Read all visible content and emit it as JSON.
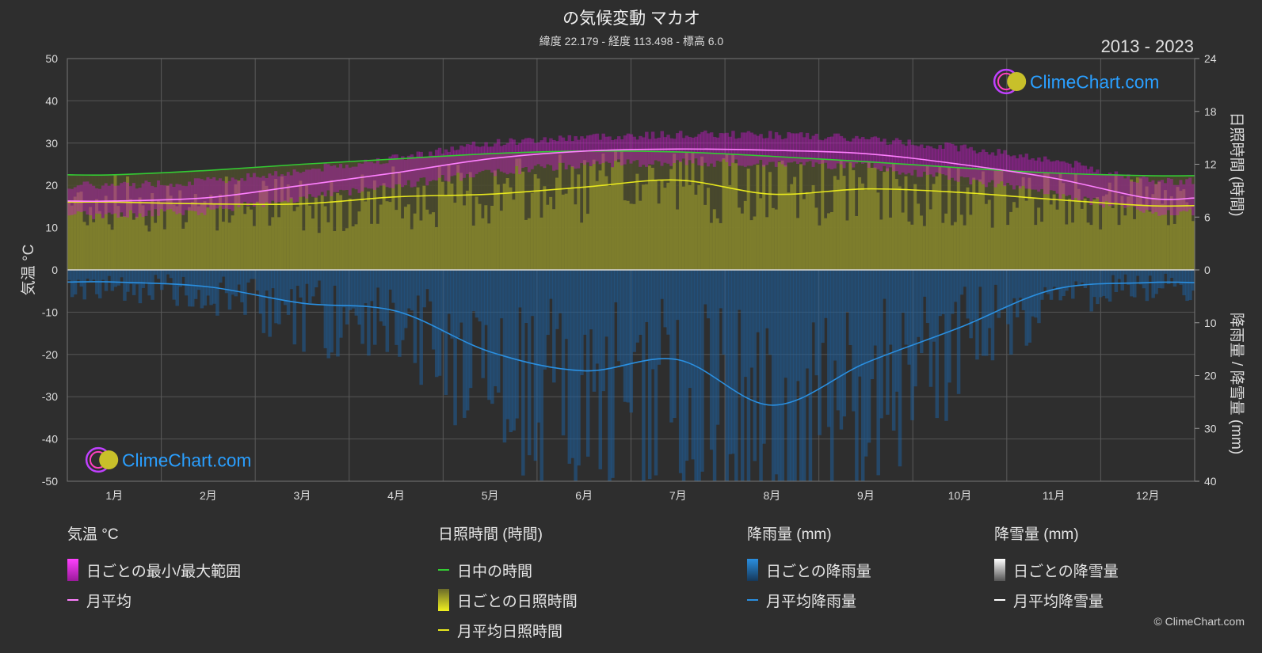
{
  "header": {
    "title": "の気候変動 マカオ",
    "subtitle": "緯度 22.179 - 経度 113.498 - 標高 6.0",
    "years": "2013 - 2023"
  },
  "brand": {
    "logo_text": "ClimeChart.com",
    "copyright": "© ClimeChart.com"
  },
  "chart_data": {
    "type": "area",
    "months": [
      "1月",
      "2月",
      "3月",
      "4月",
      "5月",
      "6月",
      "7月",
      "8月",
      "9月",
      "10月",
      "11月",
      "12月"
    ],
    "y_left": {
      "label": "気温 °C",
      "range": [
        -50,
        50
      ],
      "ticks": [
        50,
        40,
        30,
        20,
        10,
        0,
        -10,
        -20,
        -30,
        -40,
        -50
      ]
    },
    "y_right_top": {
      "label": "日照時間 (時間)",
      "range": [
        0,
        24
      ],
      "ticks": [
        24,
        18,
        12,
        6,
        0
      ]
    },
    "y_right_bottom": {
      "label": "降雨量 / 降雪量 (mm)",
      "range": [
        0,
        40
      ],
      "ticks": [
        0,
        10,
        20,
        30,
        40
      ]
    },
    "grid": true,
    "series": [
      {
        "name": "日中の時間",
        "unit": "時間",
        "color": "#33cc33",
        "values": [
          10.8,
          11.3,
          12.0,
          12.6,
          13.2,
          13.5,
          13.4,
          12.9,
          12.3,
          11.6,
          11.0,
          10.7
        ]
      },
      {
        "name": "月平均日照時間",
        "unit": "時間",
        "color": "#e8e81e",
        "values": [
          7.7,
          7.5,
          7.5,
          8.3,
          8.6,
          9.4,
          10.2,
          8.6,
          9.2,
          8.8,
          8.0,
          7.3
        ]
      },
      {
        "name": "月平均",
        "unit": "°C",
        "color": "#ff80ff",
        "values": [
          16.3,
          17.1,
          20.0,
          23.0,
          26.3,
          28.1,
          28.6,
          28.3,
          27.5,
          25.0,
          21.7,
          17.0
        ]
      },
      {
        "name": "月平均降雨量",
        "unit": "mm",
        "color": "#2a8fe0",
        "values": [
          2.3,
          3.2,
          6.3,
          7.8,
          15.5,
          19.1,
          17.0,
          25.6,
          17.6,
          10.9,
          3.7,
          2.4
        ]
      },
      {
        "name": "月平均降雪量",
        "unit": "mm",
        "color": "#ffffff",
        "values": [
          0,
          0,
          0,
          0,
          0,
          0,
          0,
          0,
          0,
          0,
          0,
          0
        ]
      }
    ],
    "daily_range_temperature": {
      "name": "日ごとの最小/最大範囲",
      "min": [
        14,
        15,
        18,
        21,
        24,
        26,
        26.5,
        26,
        25.5,
        22.5,
        19,
        14.5
      ],
      "max": [
        19,
        20,
        22.5,
        25.5,
        29,
        30.5,
        31,
        31,
        30,
        28,
        25,
        20
      ]
    }
  },
  "legend": {
    "groups": [
      {
        "title": "気温 °C",
        "items": [
          {
            "type": "box",
            "color": "#d81ad8",
            "label": "日ごとの最小/最大範囲"
          },
          {
            "type": "line",
            "color": "#ff80ff",
            "label": "月平均"
          }
        ]
      },
      {
        "title": "日照時間 (時間)",
        "items": [
          {
            "type": "line",
            "color": "#33cc33",
            "label": "日中の時間"
          },
          {
            "type": "box",
            "color": "#c8c82a",
            "label": "日ごとの日照時間"
          },
          {
            "type": "line",
            "color": "#e8e81e",
            "label": "月平均日照時間"
          }
        ]
      },
      {
        "title": "降雨量 (mm)",
        "items": [
          {
            "type": "box",
            "color": "#1f78c8",
            "label": "日ごとの降雨量"
          },
          {
            "type": "line",
            "color": "#2a8fe0",
            "label": "月平均降雨量"
          }
        ]
      },
      {
        "title": "降雪量 (mm)",
        "items": [
          {
            "type": "box",
            "color": "#dddddd",
            "label": "日ごとの降雪量"
          },
          {
            "type": "line",
            "color": "#ffffff",
            "label": "月平均降雪量"
          }
        ]
      }
    ]
  }
}
